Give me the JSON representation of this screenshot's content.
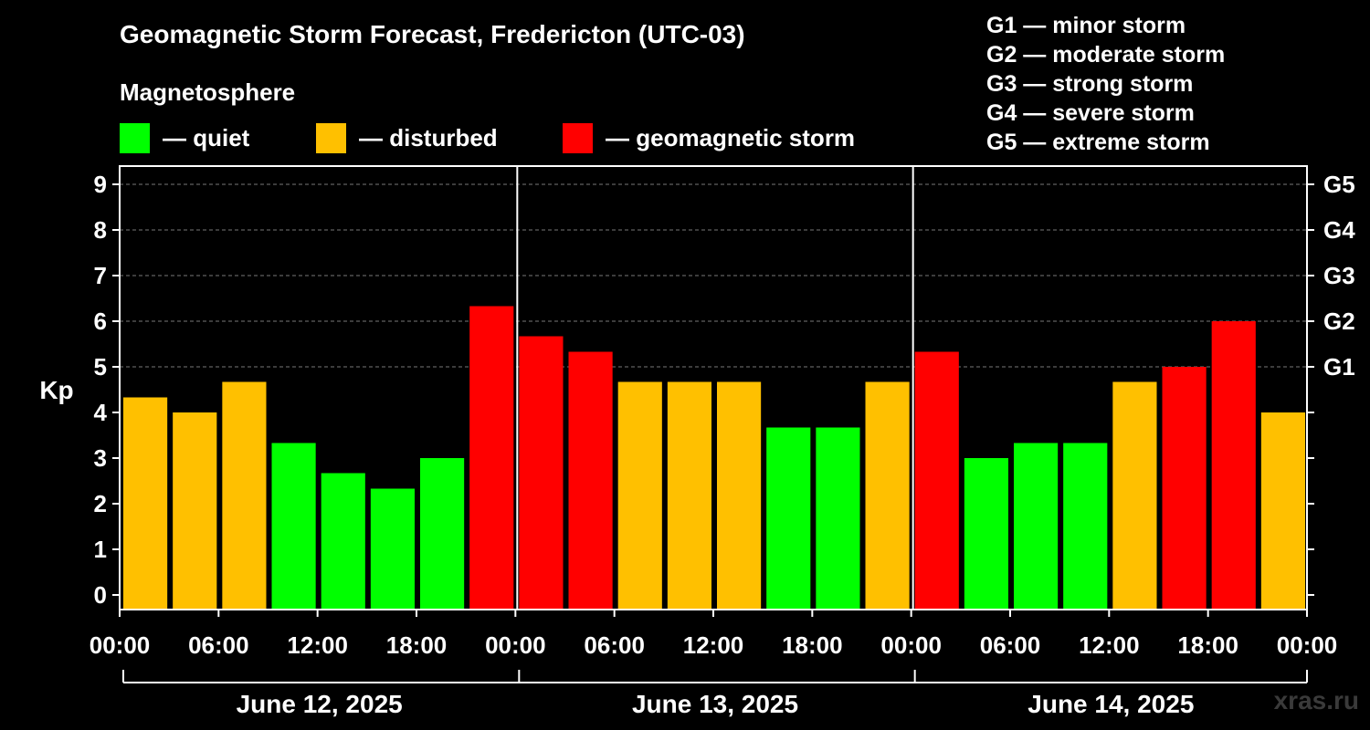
{
  "title": "Geomagnetic Storm Forecast, Fredericton (UTC-03)",
  "magnetosphere": {
    "heading": "Magnetosphere",
    "legend": [
      {
        "label": "— quiet",
        "color": "#00ff00"
      },
      {
        "label": "— disturbed",
        "color": "#ffc000"
      },
      {
        "label": "— geomagnetic storm",
        "color": "#ff0000"
      }
    ]
  },
  "storm_scale": [
    "G1 — minor storm",
    "G2 — moderate storm",
    "G3 — strong storm",
    "G4 — severe storm",
    "G5 — extreme storm"
  ],
  "watermark": "xras.ru",
  "colors": {
    "quiet": "#00ff00",
    "disturbed": "#ffc000",
    "storm": "#ff0000",
    "grid": "#777777",
    "axis": "#ffffff"
  },
  "chart_data": {
    "type": "bar",
    "ylabel": "Kp",
    "ylim": [
      0,
      9
    ],
    "yticks": [
      "0",
      "1",
      "2",
      "3",
      "4",
      "5",
      "6",
      "7",
      "8",
      "9"
    ],
    "right_ticks": [
      {
        "kp": 5,
        "label": "G1"
      },
      {
        "kp": 6,
        "label": "G2"
      },
      {
        "kp": 7,
        "label": "G3"
      },
      {
        "kp": 8,
        "label": "G4"
      },
      {
        "kp": 9,
        "label": "G5"
      }
    ],
    "xtick_labels": [
      "00:00",
      "06:00",
      "12:00",
      "18:00",
      "00:00",
      "06:00",
      "12:00",
      "18:00",
      "00:00",
      "06:00",
      "12:00",
      "18:00",
      "00:00"
    ],
    "days": [
      "June 12, 2025",
      "June 13, 2025",
      "June 14, 2025"
    ],
    "values": [
      4.33,
      4.0,
      4.67,
      3.33,
      2.67,
      2.33,
      3.0,
      6.33,
      5.67,
      5.33,
      4.67,
      4.67,
      4.67,
      3.67,
      3.67,
      4.67,
      5.33,
      3.0,
      3.33,
      3.33,
      4.67,
      5.0,
      6.0,
      4.0
    ],
    "levels": [
      "disturbed",
      "disturbed",
      "disturbed",
      "quiet",
      "quiet",
      "quiet",
      "quiet",
      "storm",
      "storm",
      "storm",
      "disturbed",
      "disturbed",
      "disturbed",
      "quiet",
      "quiet",
      "disturbed",
      "storm",
      "quiet",
      "quiet",
      "quiet",
      "disturbed",
      "storm",
      "storm",
      "disturbed"
    ]
  }
}
